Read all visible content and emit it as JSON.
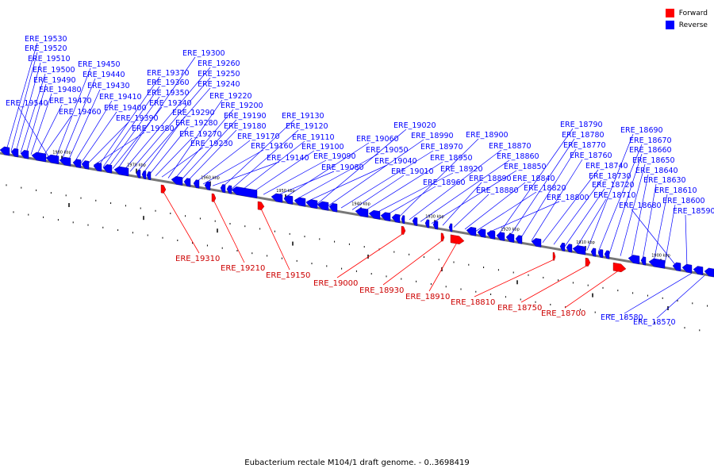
{
  "caption": "Eubacterium rectale M104/1 draft genome. - 0..3698419",
  "legend": [
    {
      "label": "Forward",
      "color": "#ff0000"
    },
    {
      "label": "Reverse",
      "color": "#0000ff"
    }
  ],
  "colors": {
    "forward": "#ff0000",
    "reverse": "#0000ff",
    "forward_line": "#ff0000",
    "reverse_line": "#0000ff",
    "backbone": "#777777"
  },
  "scale_ticks": [
    "1980 kbp",
    "1970 kbp",
    "1960 kbp",
    "1950 kbp",
    "1940 kbp",
    "1930 kbp",
    "1920 kbp",
    "1910 kbp",
    "1900 kbp"
  ],
  "reverse_genes": [
    "ERE_19530",
    "ERE_19520",
    "ERE_19510",
    "ERE_19500",
    "ERE_19490",
    "ERE_19480",
    "ERE_19470",
    "ERE_19460",
    "ERE_19540",
    "ERE_19450",
    "ERE_19440",
    "ERE_19430",
    "ERE_19410",
    "ERE_19400",
    "ERE_19390",
    "ERE_19380",
    "ERE_19370",
    "ERE_19360",
    "ERE_19350",
    "ERE_19340",
    "ERE_19300",
    "ERE_19260",
    "ERE_19250",
    "ERE_19240",
    "ERE_19290",
    "ERE_19280",
    "ERE_19270",
    "ERE_19230",
    "ERE_19220",
    "ERE_19200",
    "ERE_19190",
    "ERE_19180",
    "ERE_19170",
    "ERE_19160",
    "ERE_19140",
    "ERE_19130",
    "ERE_19120",
    "ERE_19110",
    "ERE_19100",
    "ERE_19090",
    "ERE_19080",
    "ERE_19060",
    "ERE_19050",
    "ERE_19040",
    "ERE_19020",
    "ERE_18990",
    "ERE_18970",
    "ERE_19010",
    "ERE_18950",
    "ERE_18920",
    "ERE_18960",
    "ERE_18900",
    "ERE_18870",
    "ERE_18860",
    "ERE_18850",
    "ERE_18890",
    "ERE_18880",
    "ERE_18840",
    "ERE_18820",
    "ERE_18800",
    "ERE_18790",
    "ERE_18780",
    "ERE_18770",
    "ERE_18760",
    "ERE_18740",
    "ERE_18730",
    "ERE_18720",
    "ERE_18710",
    "ERE_18690",
    "ERE_18670",
    "ERE_18660",
    "ERE_18650",
    "ERE_18640",
    "ERE_18630",
    "ERE_18610",
    "ERE_18600",
    "ERE_18680",
    "ERE_18590",
    "ERE_18580",
    "ERE_18570"
  ],
  "forward_genes": [
    "ERE_19310",
    "ERE_19210",
    "ERE_19150",
    "ERE_19000",
    "ERE_18930",
    "ERE_18910",
    "ERE_18810",
    "ERE_18750",
    "ERE_18700"
  ]
}
